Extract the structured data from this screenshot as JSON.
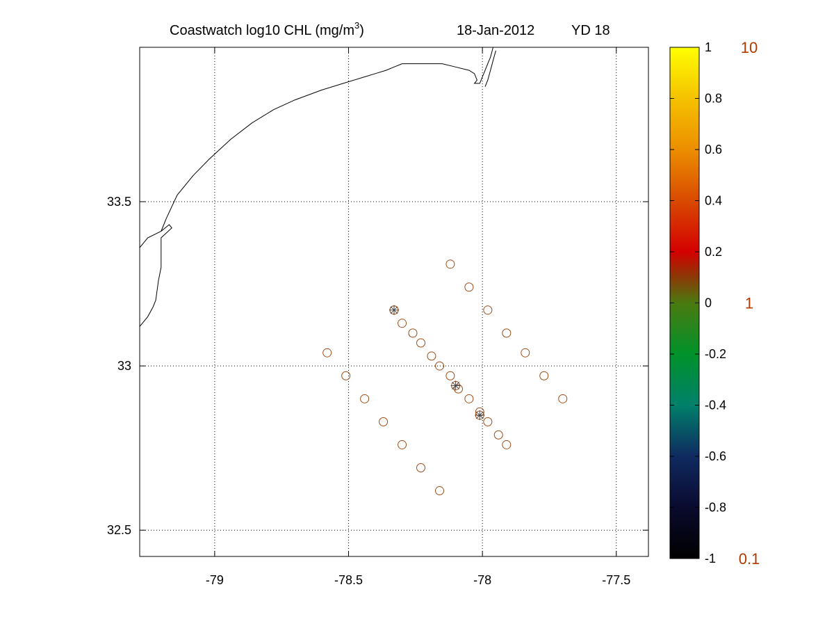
{
  "title": {
    "main": "Coastwatch  log10  CHL (mg/m",
    "superscript": "3",
    "close": ")",
    "date": "18-Jan-2012",
    "yearday": "YD 18"
  },
  "chart_data": {
    "type": "scatter",
    "xlim": [
      -79.28,
      -77.38
    ],
    "ylim": [
      32.42,
      33.97
    ],
    "xticks": [
      -79,
      -78.5,
      -78,
      -77.5
    ],
    "xtick_labels": [
      "-79",
      "-78.5",
      "-78",
      "-77.5"
    ],
    "yticks": [
      32.5,
      33,
      33.5
    ],
    "ytick_labels": [
      "32.5",
      "33",
      "33.5"
    ],
    "grid": true,
    "grid_style": "dotted",
    "marker_color": "#9c4a14",
    "coastline_color": "#000000",
    "coastline": [
      [
        -79.28,
        33.36
      ],
      [
        -79.25,
        33.39
      ],
      [
        -79.2,
        33.41
      ],
      [
        -79.17,
        33.43
      ],
      [
        -79.16,
        33.42
      ],
      [
        -79.2,
        33.39
      ],
      [
        -79.2,
        33.3
      ],
      [
        -79.21,
        33.26
      ],
      [
        -79.22,
        33.2
      ],
      [
        -79.23,
        33.18
      ],
      [
        -79.25,
        33.15
      ],
      [
        -79.27,
        33.13
      ],
      [
        -79.28,
        33.12
      ],
      null,
      [
        -79.2,
        33.41
      ],
      [
        -79.18,
        33.45
      ],
      [
        -79.14,
        33.52
      ],
      [
        -79.08,
        33.58
      ],
      [
        -79.02,
        33.63
      ],
      [
        -78.94,
        33.69
      ],
      [
        -78.86,
        33.74
      ],
      [
        -78.78,
        33.78
      ],
      [
        -78.7,
        33.81
      ],
      [
        -78.6,
        33.84
      ],
      [
        -78.52,
        33.86
      ],
      [
        -78.48,
        33.87
      ],
      [
        -78.44,
        33.88
      ],
      [
        -78.4,
        33.89
      ],
      [
        -78.36,
        33.9
      ],
      [
        -78.33,
        33.91
      ],
      [
        -78.3,
        33.92
      ],
      [
        -78.25,
        33.92
      ],
      [
        -78.2,
        33.92
      ],
      [
        -78.15,
        33.92
      ],
      [
        -78.1,
        33.91
      ],
      [
        -78.05,
        33.9
      ],
      [
        -78.03,
        33.89
      ],
      [
        -78.02,
        33.87
      ],
      [
        -78.03,
        33.86
      ],
      [
        -78.01,
        33.86
      ],
      [
        -78.0,
        33.88
      ],
      [
        -77.99,
        33.9
      ],
      [
        -77.98,
        33.92
      ],
      [
        -77.97,
        33.94
      ],
      [
        -77.96,
        33.97
      ],
      null,
      [
        -77.99,
        33.85
      ],
      [
        -77.98,
        33.87
      ],
      [
        -77.97,
        33.9
      ],
      [
        -77.96,
        33.93
      ],
      [
        -77.95,
        33.96
      ]
    ],
    "series": [
      {
        "marker": "circle",
        "x": [
          -78.12,
          -78.05,
          -77.98,
          -77.91,
          -77.84,
          -77.77,
          -77.7,
          -78.33,
          -78.3,
          -78.26,
          -78.23,
          -78.19,
          -78.16,
          -78.12,
          -78.09,
          -78.05,
          -78.01,
          -77.98,
          -77.94,
          -77.91,
          -78.58,
          -78.51,
          -78.44,
          -78.37,
          -78.3,
          -78.23,
          -78.16
        ],
        "y": [
          33.31,
          33.24,
          33.17,
          33.1,
          33.04,
          32.97,
          32.9,
          33.17,
          33.13,
          33.1,
          33.07,
          33.03,
          33.0,
          32.97,
          32.93,
          32.9,
          32.86,
          32.83,
          32.79,
          32.76,
          33.04,
          32.97,
          32.9,
          32.83,
          32.76,
          32.69,
          32.62
        ]
      },
      {
        "marker": "asterisk",
        "x": [
          -78.33,
          -78.1,
          -78.01
        ],
        "y": [
          33.17,
          32.94,
          32.85
        ]
      }
    ],
    "colorbar": {
      "range": [
        -1,
        1
      ],
      "ticks": [
        1,
        0.8,
        0.6,
        0.4,
        0.2,
        0,
        -0.2,
        -0.4,
        -0.6,
        -0.8,
        -1
      ],
      "tick_labels": [
        "1",
        "0.8",
        "0.6",
        "0.4",
        "0.2",
        "0",
        "-0.2",
        "-0.4",
        "-0.6",
        "-0.8",
        "-1"
      ],
      "linear_labels": [
        {
          "value": 1,
          "label": "10"
        },
        {
          "value": 0,
          "label": "1"
        },
        {
          "value": -1,
          "label": "0.1"
        }
      ],
      "linear_label_color": "#b03a00",
      "colormap": [
        {
          "v": -1.0,
          "color": "#000000"
        },
        {
          "v": -0.8,
          "color": "#0a0a2e"
        },
        {
          "v": -0.6,
          "color": "#0f2a60"
        },
        {
          "v": -0.4,
          "color": "#00806a"
        },
        {
          "v": -0.2,
          "color": "#00922a"
        },
        {
          "v": 0.0,
          "color": "#4a7a10"
        },
        {
          "v": 0.1,
          "color": "#8a3a06"
        },
        {
          "v": 0.2,
          "color": "#d40000"
        },
        {
          "v": 0.4,
          "color": "#d84a00"
        },
        {
          "v": 0.6,
          "color": "#ec8e00"
        },
        {
          "v": 0.8,
          "color": "#f5c200"
        },
        {
          "v": 1.0,
          "color": "#ffff00"
        }
      ]
    }
  }
}
